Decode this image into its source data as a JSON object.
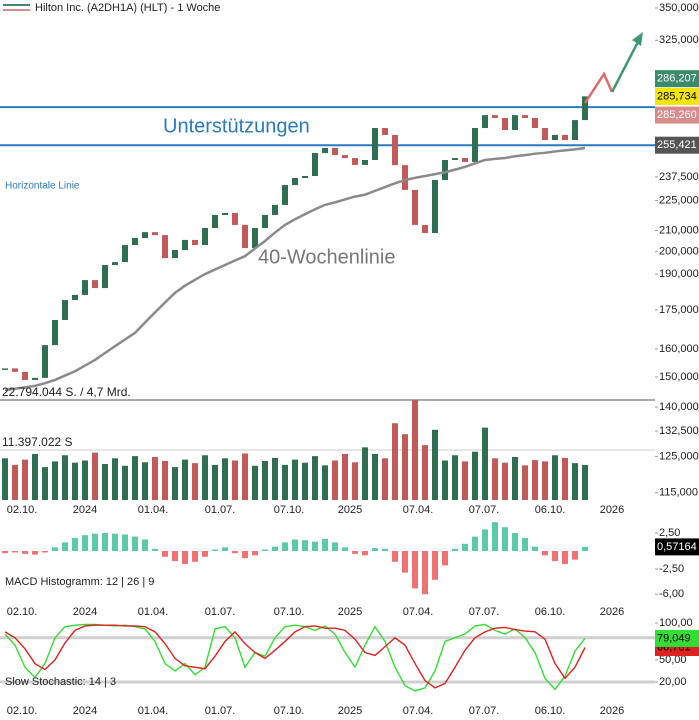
{
  "chart_data": [
    {
      "type": "candlestick",
      "title": "Hilton Inc. (A2DH1A) (HLT) - 1 Woche",
      "x_labels": [
        "02.10.",
        "2024",
        "01.04.",
        "01.07.",
        "07.10.",
        "2025",
        "07.04.",
        "07.07.",
        "06.10.",
        "2026"
      ],
      "close": [
        153.0,
        151.8,
        149.0,
        149.7,
        161.4,
        171.0,
        179.0,
        181.1,
        187.4,
        184.0,
        194.0,
        195.3,
        203.1,
        206.4,
        209.2,
        207.8,
        197.1,
        200.8,
        205.5,
        203.1,
        211.2,
        217.6,
        218.6,
        212.7,
        201.7,
        211.2,
        217.6,
        222.7,
        233.1,
        236.9,
        238.0,
        250.9,
        253.8,
        249.7,
        248.0,
        244.1,
        246.9,
        265.7,
        261.5,
        244.0,
        230.5,
        212.7,
        208.8,
        235.8,
        246.9,
        248.0,
        245.8,
        265.7,
        273.7,
        271.9,
        264.5,
        273.7,
        271.9,
        265.7,
        258.5,
        261.5,
        258.5,
        270.6,
        285.734
      ],
      "ma_values": [
        145.6,
        146.0,
        146.5,
        147.0,
        147.9,
        149.0,
        150.5,
        152.0,
        154.0,
        156.0,
        158.5,
        161.0,
        163.5,
        166.0,
        170.0,
        174.0,
        178.0,
        182.0,
        185.0,
        187.5,
        190.0,
        192.0,
        194.0,
        196.0,
        198.0,
        201.5,
        205.0,
        209.0,
        212.7,
        215.5,
        218.0,
        220.5,
        222.7,
        224.0,
        225.5,
        227.0,
        228.0,
        230.0,
        232.0,
        234.0,
        235.8,
        237.0,
        238.0,
        239.0,
        240.0,
        241.5,
        243.0,
        245.0,
        246.9,
        247.5,
        248.0,
        249.0,
        249.7,
        250.5,
        251.0,
        251.8,
        252.4,
        253.0,
        253.8
      ],
      "ylim": [
        113.1,
        356.5
      ],
      "log_scale": true,
      "yticks": [
        {
          "value": 350,
          "label": "350,000"
        },
        {
          "value": 325,
          "label": "325,000"
        },
        {
          "value": 237.5,
          "label": "237,500"
        },
        {
          "value": 225,
          "label": "225,000"
        },
        {
          "value": 210,
          "label": "210,000"
        },
        {
          "value": 200,
          "label": "200,000"
        },
        {
          "value": 190,
          "label": "190,000"
        },
        {
          "value": 175,
          "label": "175,000"
        },
        {
          "value": 160,
          "label": "160,000"
        },
        {
          "value": 150,
          "label": "150,000"
        },
        {
          "value": 140,
          "label": "140,000"
        },
        {
          "value": 132.5,
          "label": "132,500"
        },
        {
          "value": 125,
          "label": "125,000"
        },
        {
          "value": 115,
          "label": "115,000"
        }
      ],
      "support_lines": [
        278.8,
        255.421
      ],
      "price_tags": [
        {
          "value": 286.207,
          "label": "286,207",
          "color": "#3d8a6a",
          "text_color": "#ffffff"
        },
        {
          "value": 285.734,
          "label": "285,734",
          "color": "#f2e600",
          "text_color": "#000000"
        },
        {
          "value": 285.26,
          "label": "285,260",
          "color": "#d98c8c",
          "text_color": "#ffffff"
        },
        {
          "value": 255.421,
          "label": "255,421",
          "color": "#555555",
          "text_color": "#ffffff"
        }
      ],
      "annotations": [
        "Unterstützungen",
        "40-Wochenlinie",
        "Horizontale Linie"
      ],
      "up_color": "#2f6e50",
      "down_color": "#c25a5a",
      "ma_color": "#8a8a8a",
      "support_color": "#2a7ac0"
    },
    {
      "type": "bar",
      "values": [
        9500000,
        8000000,
        9200000,
        10500000,
        7500000,
        8800000,
        10200000,
        8500000,
        9000000,
        10800000,
        8200000,
        9500000,
        7800000,
        10000000,
        8600000,
        9800000,
        8900000,
        7500000,
        9200000,
        8400000,
        10200000,
        8000000,
        9500000,
        9000000,
        10600000,
        7800000,
        8900000,
        9600000,
        8000000,
        9200000,
        8500000,
        10000000,
        7900000,
        9000000,
        10500000,
        8600000,
        12000000,
        10500000,
        9500000,
        17500000,
        15000000,
        22794044,
        12500000,
        16000000,
        9000000,
        10200000,
        8800000,
        11000000,
        16500000,
        9500000,
        8500000,
        9800000,
        7900000,
        9100000,
        8800000,
        10200000,
        9600000,
        8400000,
        8000000
      ],
      "ylim": [
        0,
        22794044
      ],
      "yticks": [
        {
          "value": 22794044,
          "label": "22.794.044 S. / 4,7 Mrd."
        },
        {
          "value": 11397022,
          "label": "11.397.022 S"
        }
      ]
    },
    {
      "type": "histogram",
      "label": "MACD Histogramm: 12 | 26 | 9",
      "values": [
        -0.3,
        -0.2,
        -0.4,
        -0.5,
        -0.2,
        0.5,
        1.2,
        1.8,
        2.2,
        2.4,
        2.5,
        2.4,
        2.3,
        2.0,
        1.6,
        0.3,
        -0.8,
        -1.4,
        -1.8,
        -1.5,
        -0.8,
        0.2,
        0.5,
        -0.3,
        -1.0,
        -0.6,
        0.2,
        0.6,
        1.2,
        1.6,
        1.5,
        1.3,
        1.7,
        1.2,
        0.5,
        -0.4,
        -0.6,
        0.4,
        0.3,
        -1.5,
        -3.0,
        -5.2,
        -6.0,
        -4.0,
        -2.0,
        0.3,
        1.0,
        2.0,
        3.0,
        4.0,
        3.3,
        2.5,
        1.8,
        0.6,
        -0.6,
        -1.4,
        -1.8,
        -1.2,
        0.57164
      ],
      "ylim": [
        -6.806,
        4.583
      ],
      "yticks": [
        {
          "value": 2.5,
          "label": "2,50"
        },
        {
          "value": -2.5,
          "label": "-2,50"
        },
        {
          "value": -6,
          "label": "-6,00"
        }
      ],
      "value_tag": {
        "value": 0.57164,
        "label": "0,57164"
      },
      "pos_color": "#5ccaa6",
      "neg_color": "#f07272"
    },
    {
      "type": "line",
      "label": "Slow Stochastic: 14 | 3",
      "series": [
        {
          "color": "#33dd33",
          "values": [
            85,
            70,
            40,
            26,
            45,
            80,
            95,
            97,
            98,
            98,
            97,
            96,
            97,
            95,
            92,
            75,
            45,
            35,
            45,
            30,
            40,
            92,
            95,
            80,
            40,
            60,
            55,
            80,
            95,
            97,
            95,
            90,
            96,
            85,
            60,
            40,
            70,
            95,
            75,
            40,
            15,
            8,
            12,
            35,
            75,
            80,
            85,
            96,
            98,
            90,
            85,
            92,
            80,
            60,
            25,
            10,
            28,
            62,
            79.049
          ]
        },
        {
          "color": "#dd2222",
          "values": [
            88,
            80,
            65,
            45,
            37,
            50,
            73,
            90,
            96,
            97,
            97,
            97,
            96,
            96,
            95,
            88,
            72,
            52,
            42,
            40,
            38,
            55,
            75,
            88,
            72,
            60,
            52,
            63,
            75,
            88,
            95,
            96,
            93,
            93,
            90,
            78,
            60,
            56,
            68,
            80,
            70,
            45,
            22,
            12,
            18,
            40,
            63,
            80,
            88,
            93,
            94,
            91,
            89,
            88,
            78,
            45,
            25,
            40,
            66.781
          ]
        }
      ],
      "ylim": [
        -4.4,
        104.07
      ],
      "yticks": [
        {
          "value": 100,
          "label": "100,00"
        },
        {
          "value": 50,
          "label": "50,00"
        },
        {
          "value": 20,
          "label": "20,00"
        }
      ],
      "levels": [
        80,
        20
      ],
      "value_tags": [
        {
          "value": 79.049,
          "label": "79,049",
          "color": "#33dd33"
        },
        {
          "value": 66.781,
          "label": "66,781",
          "color": "#dd2222"
        }
      ]
    }
  ]
}
